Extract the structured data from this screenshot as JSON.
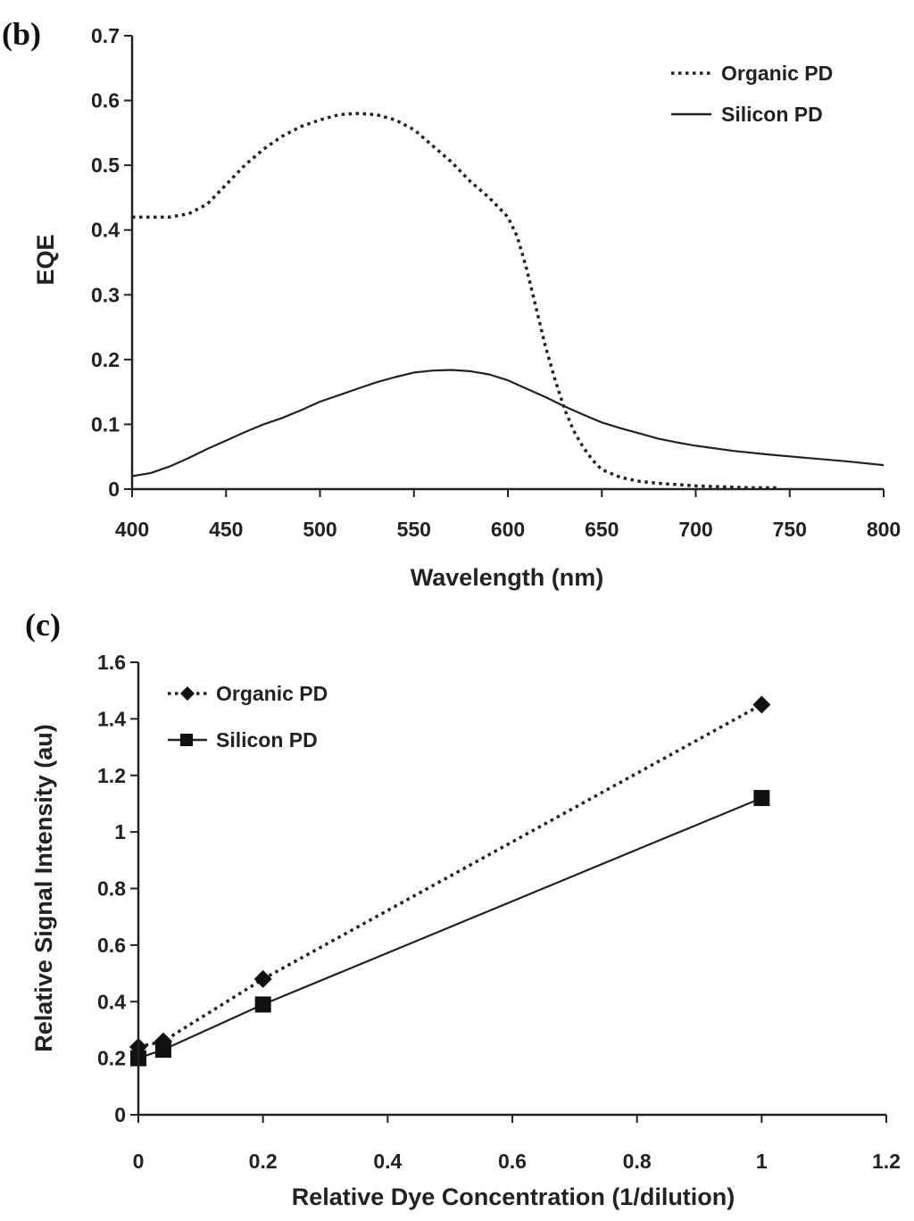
{
  "chart_data": [
    {
      "panel": "(b)",
      "type": "line",
      "title": "",
      "xlabel": "Wavelength (nm)",
      "ylabel": "EQE",
      "xlim": [
        400,
        800
      ],
      "ylim": [
        0,
        0.7
      ],
      "xticks": [
        400,
        450,
        500,
        550,
        600,
        650,
        700,
        750,
        800
      ],
      "yticks": [
        0,
        0.1,
        0.2,
        0.3,
        0.4,
        0.5,
        0.6,
        0.7
      ],
      "grid": false,
      "legend": "top-right",
      "series": [
        {
          "name": "Organic PD",
          "style": "dotted",
          "x": [
            400,
            410,
            420,
            430,
            440,
            450,
            460,
            470,
            480,
            490,
            500,
            510,
            520,
            530,
            540,
            550,
            560,
            570,
            580,
            590,
            600,
            605,
            610,
            615,
            620,
            625,
            630,
            635,
            640,
            645,
            650,
            660,
            670,
            680,
            690,
            700,
            710,
            720,
            730,
            740,
            745
          ],
          "y": [
            0.42,
            0.42,
            0.42,
            0.425,
            0.44,
            0.47,
            0.5,
            0.525,
            0.545,
            0.56,
            0.57,
            0.578,
            0.58,
            0.578,
            0.57,
            0.555,
            0.53,
            0.505,
            0.475,
            0.45,
            0.42,
            0.39,
            0.34,
            0.28,
            0.22,
            0.17,
            0.125,
            0.09,
            0.065,
            0.045,
            0.03,
            0.018,
            0.012,
            0.009,
            0.007,
            0.005,
            0.004,
            0.003,
            0.002,
            0.002,
            0.002
          ]
        },
        {
          "name": "Silicon PD",
          "style": "solid",
          "x": [
            400,
            410,
            420,
            430,
            440,
            450,
            460,
            470,
            480,
            490,
            500,
            510,
            520,
            530,
            540,
            550,
            560,
            570,
            580,
            590,
            600,
            610,
            620,
            630,
            640,
            650,
            660,
            670,
            680,
            690,
            700,
            720,
            740,
            760,
            780,
            800
          ],
          "y": [
            0.02,
            0.025,
            0.035,
            0.048,
            0.062,
            0.075,
            0.088,
            0.1,
            0.11,
            0.122,
            0.135,
            0.145,
            0.155,
            0.165,
            0.173,
            0.18,
            0.183,
            0.184,
            0.182,
            0.177,
            0.168,
            0.155,
            0.142,
            0.128,
            0.115,
            0.103,
            0.094,
            0.086,
            0.078,
            0.072,
            0.067,
            0.059,
            0.053,
            0.048,
            0.043,
            0.037
          ]
        }
      ]
    },
    {
      "panel": "(c)",
      "type": "line",
      "title": "",
      "xlabel": "Relative Dye Concentration (1/dilution)",
      "ylabel": "Relative Signal Intensity (au)",
      "xlim": [
        0,
        1.2
      ],
      "ylim": [
        0,
        1.6
      ],
      "xticks": [
        0,
        0.2,
        0.4,
        0.6,
        0.8,
        1,
        1.2
      ],
      "yticks": [
        0,
        0.2,
        0.4,
        0.6,
        0.8,
        1,
        1.2,
        1.4,
        1.6
      ],
      "grid": false,
      "legend": "top-left",
      "series": [
        {
          "name": "Organic PD",
          "style": "dotted",
          "marker": "diamond",
          "x": [
            0,
            0.04,
            0.2,
            1
          ],
          "y": [
            0.24,
            0.26,
            0.48,
            1.45
          ]
        },
        {
          "name": "Silicon PD",
          "style": "solid",
          "marker": "square",
          "x": [
            0,
            0.04,
            0.2,
            1
          ],
          "y": [
            0.2,
            0.23,
            0.39,
            1.12
          ]
        }
      ]
    }
  ]
}
